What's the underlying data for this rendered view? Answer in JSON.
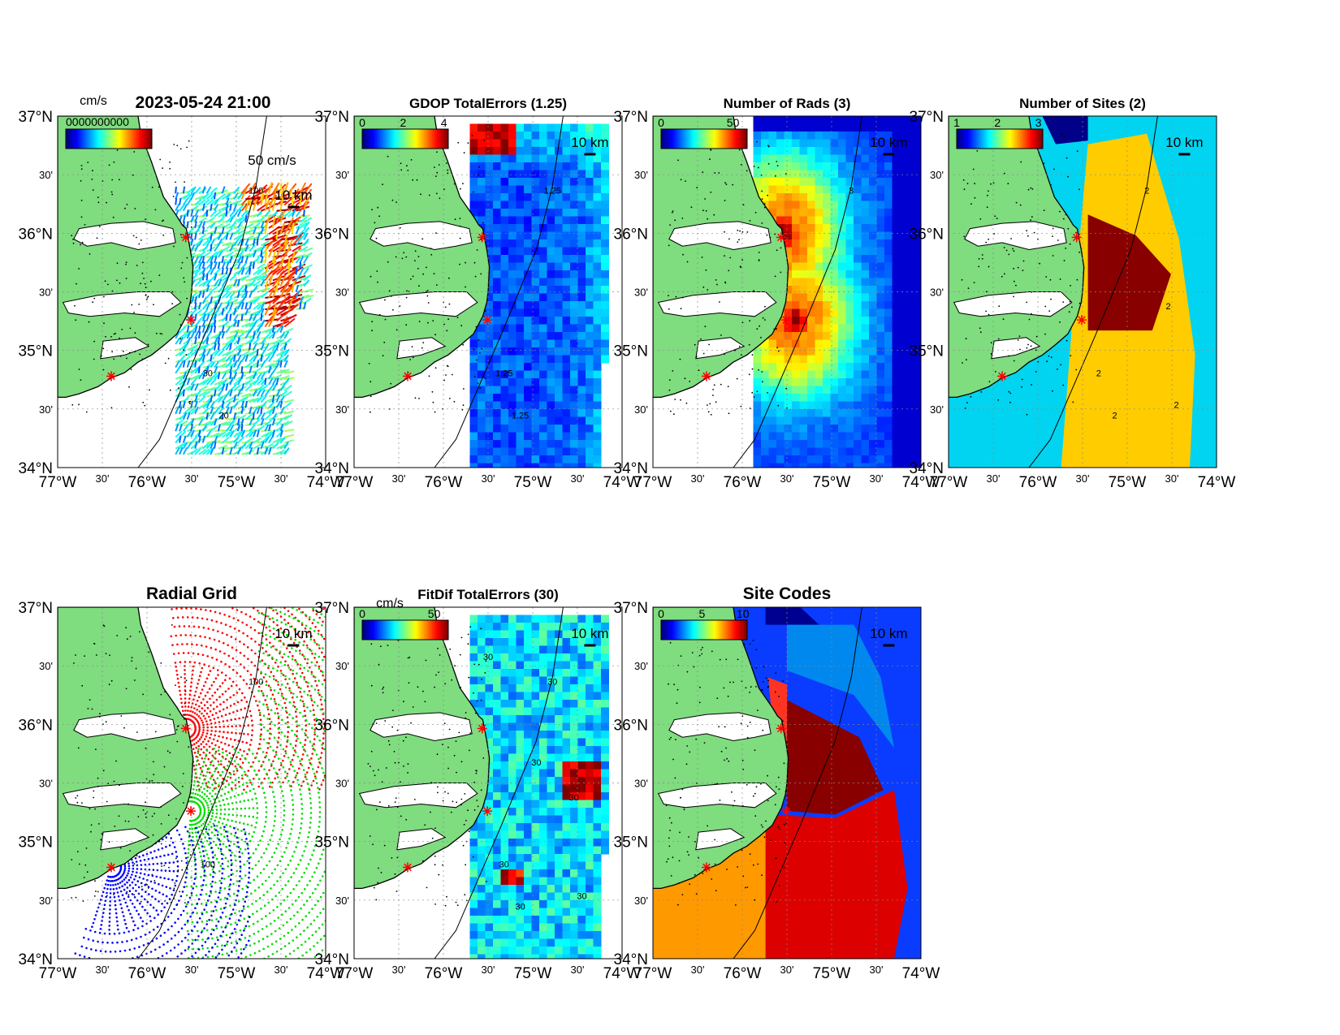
{
  "figure": {
    "panels": [
      {
        "id": "totals",
        "title": "2023-05-24 21:00",
        "title_big": true,
        "kind": "vectors",
        "colorbar": {
          "ticks": [],
          "units": "cm/s",
          "overlap_text": "0000000000"
        },
        "vector_scale": {
          "label": "50 cm/s"
        },
        "scale_bar": {
          "label": "10 km"
        },
        "contours": [
          "100",
          "30",
          "20"
        ]
      },
      {
        "id": "gdop",
        "title": "GDOP TotalErrors (1.25)",
        "kind": "heat_gdop",
        "colorbar": {
          "ticks": [
            "0",
            "2",
            "4"
          ]
        },
        "scale_bar": {
          "label": "10 km"
        },
        "contours": [
          "1.25",
          "1.25",
          "1.25"
        ]
      },
      {
        "id": "nrads",
        "title": "Number of Rads (3)",
        "kind": "heat_rads",
        "colorbar": {
          "ticks": [
            "0",
            "50"
          ]
        },
        "scale_bar": {
          "label": "10 km"
        },
        "contours": [
          "3"
        ]
      },
      {
        "id": "nsites",
        "title": "Number of Sites (2)",
        "kind": "sites",
        "colorbar": {
          "ticks": [
            "1",
            "2",
            "3"
          ]
        },
        "scale_bar": {
          "label": "10 km"
        },
        "contours": [
          "2",
          "2",
          "2",
          "2",
          "2"
        ]
      },
      {
        "id": "radgrid",
        "title": "Radial Grid",
        "title_big": true,
        "kind": "radial",
        "scale_bar": {
          "label": "10 km"
        },
        "contours": [
          "100",
          "100"
        ]
      },
      {
        "id": "fitdif",
        "title": "FitDif TotalErrors (30)",
        "kind": "heat_fitdif",
        "colorbar": {
          "ticks": [
            "0",
            "50"
          ],
          "units": "cm/s"
        },
        "scale_bar": {
          "label": "10 km"
        },
        "contours": [
          "30",
          "30",
          "30",
          "30",
          "30",
          "30",
          "30"
        ]
      },
      {
        "id": "sitecodes",
        "title": "Site Codes",
        "title_big": true,
        "kind": "codes",
        "colorbar": {
          "ticks": [
            "0",
            "5",
            "10"
          ]
        },
        "scale_bar": {
          "label": "10 km"
        }
      }
    ],
    "axes": {
      "lon_labels": [
        "77°W",
        "30'",
        "76°W",
        "30'",
        "75°W",
        "30'",
        "74°W"
      ],
      "lat_labels": [
        "37°N",
        "30'",
        "36°N",
        "30'",
        "35°N",
        "30'",
        "34°N"
      ],
      "lon_range": [
        -77,
        -74
      ],
      "lat_range": [
        34,
        37
      ]
    },
    "colors": {
      "land": "#7fdc7f",
      "site_marker": "#ff0000",
      "grid_red": "#ff0000",
      "grid_green": "#00dd00",
      "grid_blue": "#0000ff"
    }
  }
}
